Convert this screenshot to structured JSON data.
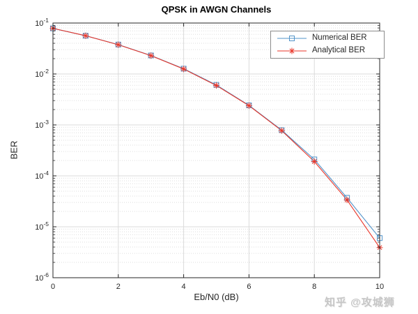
{
  "watermark": {
    "text": "知乎 @攻城狮",
    "color": "#c6c6c6"
  },
  "chart_data": {
    "type": "line",
    "title": "QPSK in AWGN Channels",
    "xlabel": "Eb/N0 (dB)",
    "ylabel": "BER",
    "x_range": [
      0,
      10
    ],
    "x_ticks": [
      0,
      2,
      4,
      6,
      8,
      10
    ],
    "y_scale": "log",
    "y_range_exponents": [
      -6,
      -1
    ],
    "grid": {
      "major": true,
      "y_minor_dotted": true,
      "x_minor": false
    },
    "legend_position": "northeast",
    "axis_color": "#262626",
    "grid_major_color": "#dbdbdb",
    "grid_minor_color": "#dedede",
    "x": [
      0,
      1,
      2,
      3,
      4,
      5,
      6,
      7,
      8,
      9,
      10
    ],
    "series": [
      {
        "name": "Numerical BER",
        "color": "#5193c9",
        "marker": "square",
        "values": [
          0.0785,
          0.0563,
          0.0378,
          0.0231,
          0.0127,
          0.0061,
          0.00242,
          0.00079,
          0.00021,
          3.7e-05,
          6e-06
        ]
      },
      {
        "name": "Analytical BER",
        "color": "#e8362a",
        "marker": "asterisk",
        "values": [
          0.0786,
          0.0563,
          0.0375,
          0.0229,
          0.0125,
          0.00595,
          0.00239,
          0.000772,
          0.000191,
          3.36e-05,
          3.9e-06
        ]
      }
    ]
  }
}
